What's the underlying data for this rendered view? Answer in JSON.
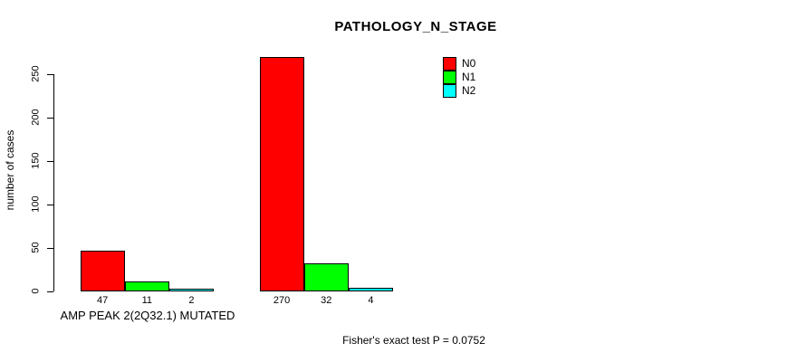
{
  "chart_data": {
    "type": "bar",
    "title": "PATHOLOGY_N_STAGE",
    "xlabel": "",
    "ylabel": "number of cases",
    "ylim": [
      0,
      250
    ],
    "yticks": [
      0,
      50,
      100,
      150,
      200,
      250
    ],
    "grid": false,
    "legend_position": "top-right",
    "categories": [
      "AMP PEAK 2(2Q32.1) MUTATED",
      ""
    ],
    "series": [
      {
        "name": "N0",
        "color": "#ff0000",
        "values": [
          47,
          270
        ]
      },
      {
        "name": "N1",
        "color": "#00ff00",
        "values": [
          11,
          32
        ]
      },
      {
        "name": "N2",
        "color": "#00ffff",
        "values": [
          2,
          4
        ]
      }
    ],
    "annotation": "Fisher's exact test P = 0.0752"
  },
  "colors": {
    "background": "#ffffff",
    "axis": "#000000",
    "bar_border": "#000000",
    "text": "#000000"
  }
}
